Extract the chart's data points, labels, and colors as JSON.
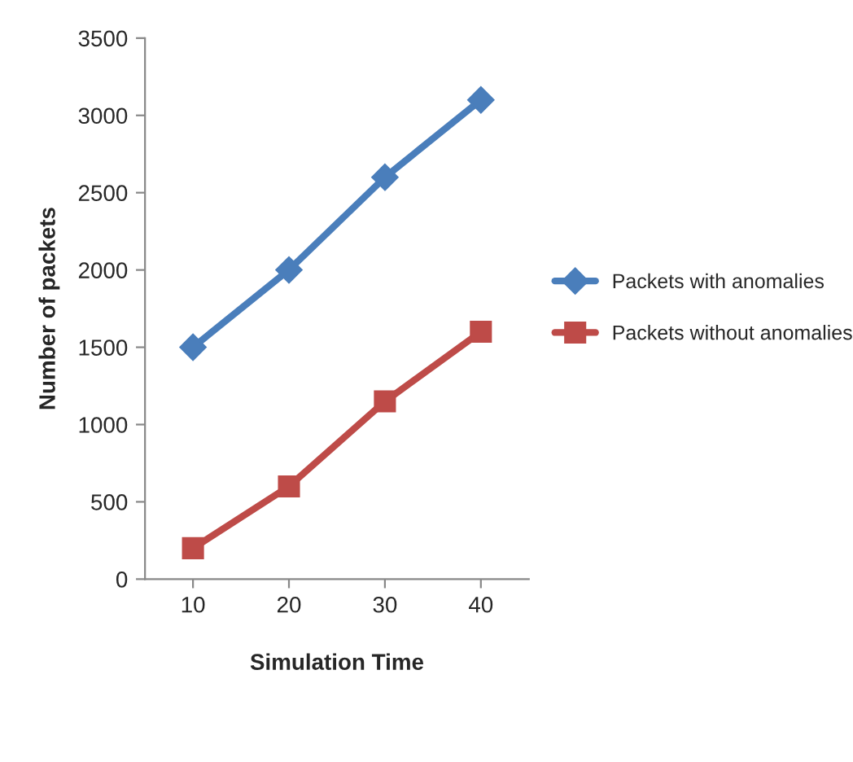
{
  "chart_data": {
    "type": "line",
    "xlabel": "Simulation Time",
    "ylabel": "Number of packets",
    "categories": [
      "10",
      "20",
      "30",
      "40"
    ],
    "series": [
      {
        "name": "Packets with anomalies",
        "color": "#4a7ebb",
        "marker": "diamond",
        "values": [
          1500,
          2000,
          2600,
          3100
        ]
      },
      {
        "name": "Packets without anomalies",
        "color": "#be4b48",
        "marker": "square",
        "values": [
          200,
          600,
          1150,
          1600
        ]
      }
    ],
    "ylim": [
      0,
      3500
    ],
    "yticks": [
      0,
      500,
      1000,
      1500,
      2000,
      2500,
      3000,
      3500
    ],
    "grid": false,
    "legend": "right",
    "line_style": "solid"
  }
}
